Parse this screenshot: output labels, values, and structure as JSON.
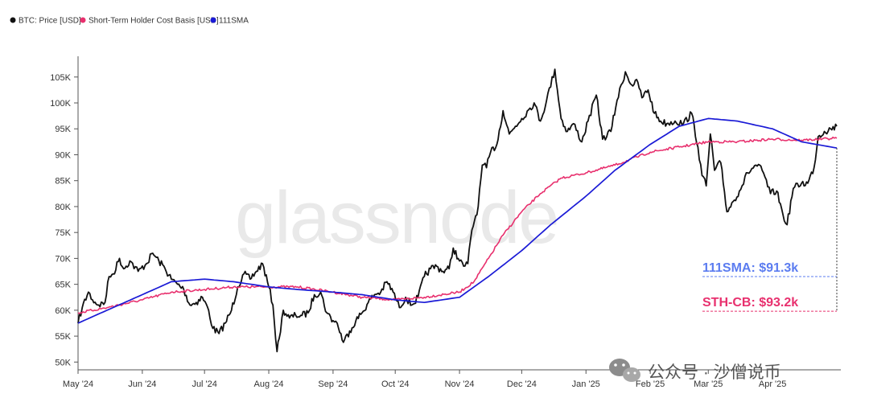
{
  "chart_data": {
    "type": "line",
    "title": "",
    "xlabel": "",
    "ylabel": "",
    "legend_position": "top-left",
    "grid": false,
    "colors": {
      "price": "#111111",
      "sth": "#e8306e",
      "sma": "#1a1ad6",
      "sma_label": "#5b7cf0",
      "sth_label": "#e8306e"
    },
    "x_range": [
      "2024-05-01",
      "2025-05-02"
    ],
    "ylim": [
      48500,
      109000
    ],
    "x_ticks": [
      {
        "date": "2024-05-01",
        "label": "May '24"
      },
      {
        "date": "2024-06-01",
        "label": "Jun '24"
      },
      {
        "date": "2024-07-01",
        "label": "Jul '24"
      },
      {
        "date": "2024-08-01",
        "label": "Aug '24"
      },
      {
        "date": "2024-09-01",
        "label": "Sep '24"
      },
      {
        "date": "2024-10-01",
        "label": "Oct '24"
      },
      {
        "date": "2024-11-01",
        "label": "Nov '24"
      },
      {
        "date": "2024-12-01",
        "label": "Dec '24"
      },
      {
        "date": "2025-01-01",
        "label": "Jan '25"
      },
      {
        "date": "2025-02-01",
        "label": "Feb '25"
      },
      {
        "date": "2025-03-01",
        "label": "Mar '25"
      },
      {
        "date": "2025-04-01",
        "label": "Apr '25"
      }
    ],
    "y_ticks": [
      {
        "value": 50000,
        "label": "50K"
      },
      {
        "value": 55000,
        "label": "55K"
      },
      {
        "value": 60000,
        "label": "60K"
      },
      {
        "value": 65000,
        "label": "65K"
      },
      {
        "value": 70000,
        "label": "70K"
      },
      {
        "value": 75000,
        "label": "75K"
      },
      {
        "value": 80000,
        "label": "80K"
      },
      {
        "value": 85000,
        "label": "85K"
      },
      {
        "value": 90000,
        "label": "90K"
      },
      {
        "value": 95000,
        "label": "95K"
      },
      {
        "value": 100000,
        "label": "100K"
      },
      {
        "value": 105000,
        "label": "105K"
      }
    ],
    "series": [
      {
        "name": "BTC: Price [USD]",
        "key": "price",
        "points": [
          [
            "2024-05-01",
            57500
          ],
          [
            "2024-05-03",
            60500
          ],
          [
            "2024-05-06",
            63500
          ],
          [
            "2024-05-08",
            62000
          ],
          [
            "2024-05-11",
            61000
          ],
          [
            "2024-05-14",
            61500
          ],
          [
            "2024-05-16",
            66500
          ],
          [
            "2024-05-18",
            67000
          ],
          [
            "2024-05-21",
            70000
          ],
          [
            "2024-05-23",
            68000
          ],
          [
            "2024-05-26",
            69500
          ],
          [
            "2024-05-30",
            67500
          ],
          [
            "2024-06-03",
            69000
          ],
          [
            "2024-06-06",
            71000
          ],
          [
            "2024-06-09",
            69500
          ],
          [
            "2024-06-12",
            68000
          ],
          [
            "2024-06-15",
            66000
          ],
          [
            "2024-06-18",
            65000
          ],
          [
            "2024-06-21",
            64000
          ],
          [
            "2024-06-24",
            61000
          ],
          [
            "2024-06-27",
            61500
          ],
          [
            "2024-06-30",
            62500
          ],
          [
            "2024-07-03",
            60000
          ],
          [
            "2024-07-05",
            56500
          ],
          [
            "2024-07-08",
            55500
          ],
          [
            "2024-07-11",
            57500
          ],
          [
            "2024-07-14",
            60000
          ],
          [
            "2024-07-17",
            64500
          ],
          [
            "2024-07-20",
            67000
          ],
          [
            "2024-07-23",
            66000
          ],
          [
            "2024-07-26",
            67500
          ],
          [
            "2024-07-29",
            69000
          ],
          [
            "2024-08-01",
            64500
          ],
          [
            "2024-08-03",
            61000
          ],
          [
            "2024-08-05",
            52000
          ],
          [
            "2024-08-06",
            54500
          ],
          [
            "2024-08-08",
            60000
          ],
          [
            "2024-08-11",
            58500
          ],
          [
            "2024-08-14",
            59000
          ],
          [
            "2024-08-17",
            59000
          ],
          [
            "2024-08-20",
            59500
          ],
          [
            "2024-08-23",
            63000
          ],
          [
            "2024-08-26",
            63500
          ],
          [
            "2024-08-29",
            59500
          ],
          [
            "2024-09-01",
            58000
          ],
          [
            "2024-09-03",
            57500
          ],
          [
            "2024-09-06",
            53800
          ],
          [
            "2024-09-09",
            56000
          ],
          [
            "2024-09-12",
            58000
          ],
          [
            "2024-09-15",
            59500
          ],
          [
            "2024-09-18",
            61500
          ],
          [
            "2024-09-21",
            63000
          ],
          [
            "2024-09-24",
            63500
          ],
          [
            "2024-09-27",
            65500
          ],
          [
            "2024-09-30",
            63500
          ],
          [
            "2024-10-03",
            60500
          ],
          [
            "2024-10-06",
            62500
          ],
          [
            "2024-10-09",
            61000
          ],
          [
            "2024-10-12",
            62500
          ],
          [
            "2024-10-15",
            66500
          ],
          [
            "2024-10-18",
            68000
          ],
          [
            "2024-10-21",
            68500
          ],
          [
            "2024-10-24",
            67500
          ],
          [
            "2024-10-27",
            68000
          ],
          [
            "2024-10-29",
            72000
          ],
          [
            "2024-11-01",
            69500
          ],
          [
            "2024-11-03",
            68500
          ],
          [
            "2024-11-05",
            69000
          ],
          [
            "2024-11-07",
            75500
          ],
          [
            "2024-11-10",
            80000
          ],
          [
            "2024-11-12",
            88000
          ],
          [
            "2024-11-14",
            87500
          ],
          [
            "2024-11-16",
            90500
          ],
          [
            "2024-11-19",
            92000
          ],
          [
            "2024-11-22",
            98500
          ],
          [
            "2024-11-25",
            94000
          ],
          [
            "2024-11-28",
            95500
          ],
          [
            "2024-12-01",
            97000
          ],
          [
            "2024-12-05",
            99000
          ],
          [
            "2024-12-07",
            100000
          ],
          [
            "2024-12-10",
            96500
          ],
          [
            "2024-12-13",
            100500
          ],
          [
            "2024-12-17",
            106500
          ],
          [
            "2024-12-20",
            97000
          ],
          [
            "2024-12-23",
            94500
          ],
          [
            "2024-12-26",
            96000
          ],
          [
            "2024-12-30",
            92500
          ],
          [
            "2025-01-02",
            96500
          ],
          [
            "2025-01-06",
            101500
          ],
          [
            "2025-01-09",
            93000
          ],
          [
            "2025-01-13",
            94500
          ],
          [
            "2025-01-16",
            100500
          ],
          [
            "2025-01-20",
            106000
          ],
          [
            "2025-01-23",
            103500
          ],
          [
            "2025-01-26",
            104000
          ],
          [
            "2025-01-28",
            101000
          ],
          [
            "2025-01-31",
            102500
          ],
          [
            "2025-02-03",
            98000
          ],
          [
            "2025-02-06",
            96500
          ],
          [
            "2025-02-09",
            96000
          ],
          [
            "2025-02-13",
            96500
          ],
          [
            "2025-02-17",
            96000
          ],
          [
            "2025-02-21",
            98000
          ],
          [
            "2025-02-24",
            91500
          ],
          [
            "2025-02-26",
            86000
          ],
          [
            "2025-02-28",
            84000
          ],
          [
            "2025-03-02",
            94000
          ],
          [
            "2025-03-04",
            87000
          ],
          [
            "2025-03-07",
            88500
          ],
          [
            "2025-03-10",
            79000
          ],
          [
            "2025-03-13",
            81000
          ],
          [
            "2025-03-16",
            83000
          ],
          [
            "2025-03-20",
            86500
          ],
          [
            "2025-03-24",
            88000
          ],
          [
            "2025-03-27",
            87000
          ],
          [
            "2025-03-31",
            82500
          ],
          [
            "2025-04-03",
            83000
          ],
          [
            "2025-04-06",
            78500
          ],
          [
            "2025-04-08",
            76500
          ],
          [
            "2025-04-11",
            83500
          ],
          [
            "2025-04-15",
            84500
          ],
          [
            "2025-04-18",
            84500
          ],
          [
            "2025-04-21",
            87500
          ],
          [
            "2025-04-23",
            93500
          ],
          [
            "2025-04-26",
            94500
          ],
          [
            "2025-04-29",
            95000
          ],
          [
            "2025-05-02",
            95500
          ]
        ]
      },
      {
        "name": "Short-Term Holder Cost Basis [USD]",
        "key": "sth",
        "points": [
          [
            "2024-05-01",
            59500
          ],
          [
            "2024-05-15",
            60500
          ],
          [
            "2024-06-01",
            62000
          ],
          [
            "2024-06-15",
            63500
          ],
          [
            "2024-07-01",
            64000
          ],
          [
            "2024-07-15",
            64500
          ],
          [
            "2024-08-01",
            64500
          ],
          [
            "2024-08-15",
            64500
          ],
          [
            "2024-09-01",
            63500
          ],
          [
            "2024-09-15",
            62500
          ],
          [
            "2024-10-01",
            62000
          ],
          [
            "2024-10-15",
            62500
          ],
          [
            "2024-11-01",
            63500
          ],
          [
            "2024-11-08",
            65500
          ],
          [
            "2024-11-15",
            70000
          ],
          [
            "2024-11-22",
            74500
          ],
          [
            "2024-12-01",
            79000
          ],
          [
            "2024-12-10",
            82500
          ],
          [
            "2024-12-20",
            85500
          ],
          [
            "2025-01-01",
            86500
          ],
          [
            "2025-01-15",
            88000
          ],
          [
            "2025-02-01",
            90500
          ],
          [
            "2025-02-15",
            91500
          ],
          [
            "2025-03-01",
            92500
          ],
          [
            "2025-03-15",
            92500
          ],
          [
            "2025-04-01",
            93000
          ],
          [
            "2025-04-15",
            92800
          ],
          [
            "2025-05-02",
            93200
          ]
        ]
      },
      {
        "name": "111SMA",
        "key": "sma",
        "points": [
          [
            "2024-05-01",
            57500
          ],
          [
            "2024-05-15",
            60000
          ],
          [
            "2024-06-01",
            63000
          ],
          [
            "2024-06-15",
            65500
          ],
          [
            "2024-07-01",
            66000
          ],
          [
            "2024-07-15",
            65500
          ],
          [
            "2024-08-01",
            64500
          ],
          [
            "2024-08-15",
            64000
          ],
          [
            "2024-09-01",
            63500
          ],
          [
            "2024-09-15",
            63000
          ],
          [
            "2024-10-01",
            62000
          ],
          [
            "2024-10-15",
            61500
          ],
          [
            "2024-11-01",
            62500
          ],
          [
            "2024-11-15",
            66500
          ],
          [
            "2024-12-01",
            71500
          ],
          [
            "2024-12-15",
            76500
          ],
          [
            "2025-01-01",
            82000
          ],
          [
            "2025-01-15",
            87000
          ],
          [
            "2025-02-01",
            92000
          ],
          [
            "2025-02-15",
            95500
          ],
          [
            "2025-03-01",
            97000
          ],
          [
            "2025-03-15",
            96500
          ],
          [
            "2025-04-01",
            95000
          ],
          [
            "2025-04-15",
            92500
          ],
          [
            "2025-05-02",
            91300
          ]
        ]
      }
    ],
    "annotations": [
      {
        "key": "sma",
        "text": "111SMA: $91.3k",
        "value": 91300,
        "guide_value": 66500
      },
      {
        "key": "sth",
        "text": "STH-CB: $93.2k",
        "value": 93200,
        "guide_value": 59800
      }
    ],
    "watermark": "glassnode"
  },
  "wechat": {
    "text": "公众号 · 沙僧说币",
    "icon": "wechat-icon"
  }
}
